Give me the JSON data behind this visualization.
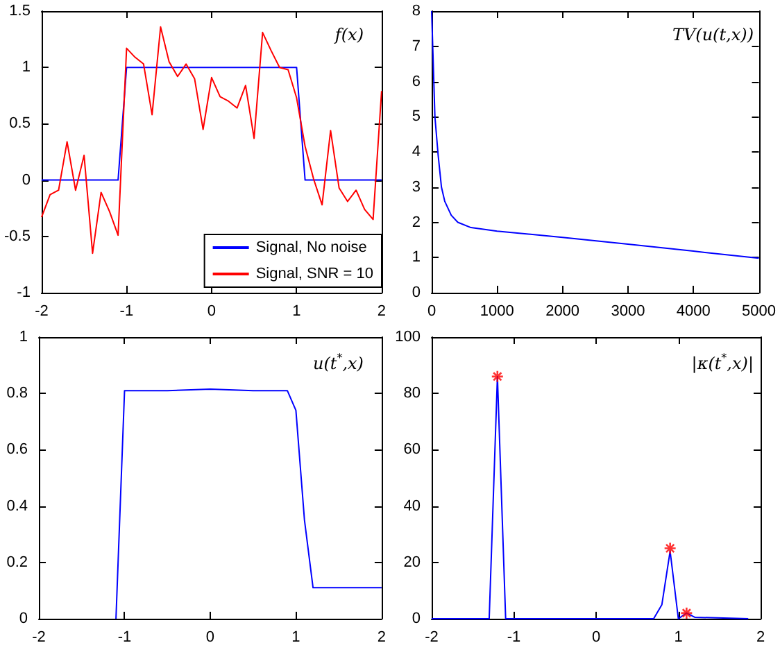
{
  "chart_data": [
    {
      "type": "line",
      "title": "f(x)",
      "xlim": [
        -2,
        2
      ],
      "xticks": [
        -2,
        -1,
        0,
        1,
        2
      ],
      "ylim": [
        -1,
        1.5
      ],
      "yticks": [
        -1,
        -0.5,
        0,
        0.5,
        1,
        1.5
      ],
      "grid": false,
      "legend": "bottom right",
      "series": [
        {
          "name": "Signal, No noise",
          "color": "#0000ff",
          "x": [
            -2,
            -1.1,
            -1,
            1,
            1.1,
            2
          ],
          "values": [
            0,
            0,
            1,
            1,
            0,
            0
          ]
        },
        {
          "name": "Signal, SNR = 10",
          "color": "#ff0000",
          "x": [
            -2,
            -1.9,
            -1.8,
            -1.7,
            -1.6,
            -1.5,
            -1.4,
            -1.3,
            -1.2,
            -1.1,
            -1,
            -0.9,
            -0.8,
            -0.7,
            -0.6,
            -0.5,
            -0.4,
            -0.3,
            -0.2,
            -0.1,
            0,
            0.1,
            0.2,
            0.3,
            0.4,
            0.5,
            0.6,
            0.7,
            0.8,
            0.9,
            1,
            1.1,
            1.2,
            1.3,
            1.4,
            1.5,
            1.6,
            1.7,
            1.8,
            1.9,
            2
          ],
          "values": [
            -0.33,
            -0.13,
            -0.09,
            0.34,
            -0.09,
            0.22,
            -0.65,
            -0.11,
            -0.28,
            -0.49,
            1.17,
            1.09,
            1.03,
            0.58,
            1.36,
            1.05,
            0.92,
            1.03,
            0.9,
            0.45,
            0.91,
            0.74,
            0.7,
            0.64,
            0.84,
            0.37,
            1.31,
            1.15,
            1,
            0.98,
            0.73,
            0.3,
            0.01,
            -0.22,
            0.44,
            -0.07,
            -0.19,
            -0.09,
            -0.26,
            -0.35,
            0.79
          ]
        }
      ]
    },
    {
      "type": "line",
      "title": "TV(u(t,x))",
      "xlim": [
        0,
        5000
      ],
      "xticks": [
        0,
        1000,
        2000,
        3000,
        4000,
        5000
      ],
      "ylim": [
        0,
        8
      ],
      "yticks": [
        0,
        1,
        2,
        3,
        4,
        5,
        6,
        7,
        8
      ],
      "grid": false,
      "series": [
        {
          "color": "#0000ff",
          "x": [
            0,
            20,
            50,
            100,
            150,
            200,
            300,
            400,
            600,
            1000,
            2000,
            3000,
            4000,
            5000
          ],
          "values": [
            8,
            6.8,
            5,
            3.9,
            3,
            2.6,
            2.2,
            2,
            1.85,
            1.75,
            1.57,
            1.38,
            1.18,
            0.98
          ]
        }
      ]
    },
    {
      "type": "line",
      "title": "u(t$^{*}$,x)",
      "xlim": [
        -2,
        2
      ],
      "xticks": [
        -2,
        -1,
        0,
        1,
        2
      ],
      "ylim": [
        0,
        1
      ],
      "yticks": [
        0,
        0.2,
        0.4,
        0.6,
        0.8,
        1
      ],
      "grid": false,
      "series": [
        {
          "color": "#0000ff",
          "x": [
            -1.1,
            -1,
            -0.5,
            0,
            0.5,
            0.9,
            1,
            1.1,
            1.2,
            1.4,
            2
          ],
          "values": [
            0,
            0.81,
            0.81,
            0.815,
            0.81,
            0.81,
            0.74,
            0.35,
            0.11,
            0.11,
            0.11
          ]
        }
      ]
    },
    {
      "type": "line",
      "title": "|κ(t$^{*}$,x)|",
      "xlim": [
        -2,
        2
      ],
      "xticks": [
        -2,
        -1,
        0,
        1,
        2
      ],
      "ylim": [
        0,
        100
      ],
      "yticks": [
        0,
        20,
        40,
        60,
        80,
        100
      ],
      "grid": false,
      "series": [
        {
          "color": "#0000ff",
          "x": [
            -2,
            -1.3,
            -1.2,
            -1.1,
            0.7,
            0.8,
            0.9,
            1,
            1.1,
            1.2,
            1.85
          ],
          "values": [
            0,
            0,
            86,
            0,
            0,
            5,
            24,
            0,
            2,
            0.5,
            0
          ]
        },
        {
          "type": "scatter",
          "marker": "cross",
          "color": "#ff0000",
          "x": [
            -1.2,
            0.9,
            1.1
          ],
          "values": [
            86,
            25,
            2
          ]
        }
      ]
    }
  ]
}
